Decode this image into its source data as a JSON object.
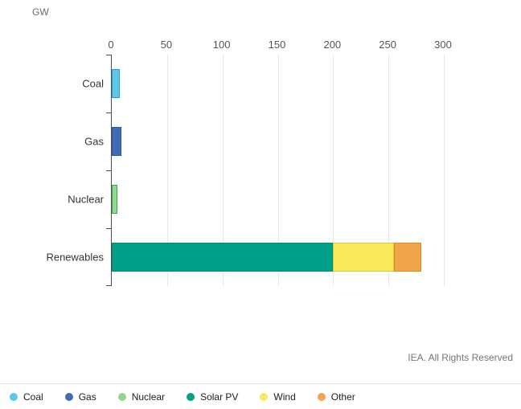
{
  "chart_data": {
    "type": "bar",
    "orientation": "horizontal",
    "unit": "GW",
    "title": "",
    "categories": [
      "Coal",
      "Gas",
      "Nuclear",
      "Renewables"
    ],
    "series": [
      {
        "name": "Coal",
        "color": "#5EC6E8",
        "border": "#2E9FD1",
        "values": [
          7,
          0,
          0,
          0
        ]
      },
      {
        "name": "Gas",
        "color": "#3E6DB5",
        "border": "#2E549B",
        "values": [
          0,
          9,
          0,
          0
        ]
      },
      {
        "name": "Nuclear",
        "color": "#90D892",
        "border": "#39A845",
        "values": [
          0,
          0,
          5,
          0
        ]
      },
      {
        "name": "Solar PV",
        "color": "#00A188",
        "border": "#008A74",
        "values": [
          0,
          0,
          0,
          200
        ]
      },
      {
        "name": "Wind",
        "color": "#F8E95A",
        "border": "#DFCE2E",
        "values": [
          0,
          0,
          0,
          55
        ]
      },
      {
        "name": "Other",
        "color": "#F1A44C",
        "border": "#D98A2B",
        "values": [
          0,
          0,
          0,
          25
        ]
      }
    ],
    "xlim": [
      0,
      300
    ],
    "xticks": [
      0,
      50,
      100,
      150,
      200,
      250,
      300
    ],
    "grid": true,
    "legend_position": "bottom",
    "footer": "IEA. All Rights Reserved"
  }
}
